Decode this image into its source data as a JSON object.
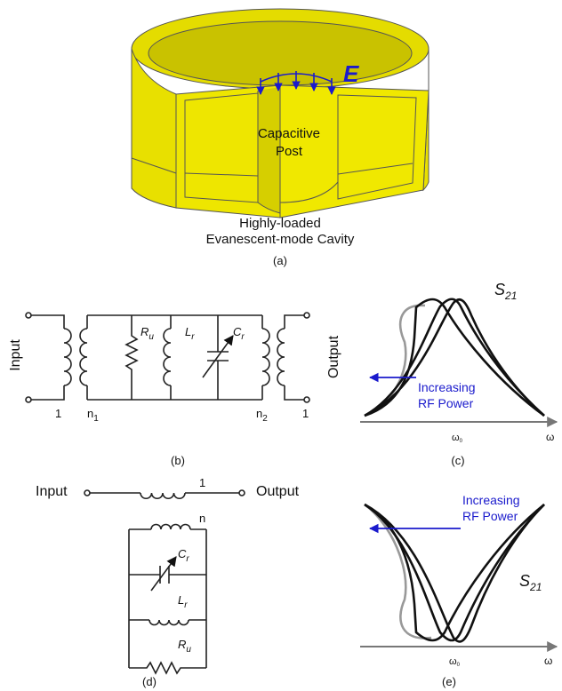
{
  "panel_a": {
    "field": "E",
    "post": [
      "Capacitive",
      "Post"
    ],
    "cavity": [
      "Highly-loaded",
      "Evanescent-mode Cavity"
    ],
    "caption": "(a)"
  },
  "panel_b": {
    "input": "Input",
    "output": "Output",
    "r": {
      "symbol": "R",
      "sub": "u"
    },
    "l": {
      "symbol": "L",
      "sub": "r"
    },
    "c": {
      "symbol": "C",
      "sub": "r"
    },
    "ratio_in": "1",
    "n1": {
      "symbol": "n",
      "sub": "1"
    },
    "n2": {
      "symbol": "n",
      "sub": "2"
    },
    "ratio_out": "1",
    "caption": "(b)"
  },
  "panel_c": {
    "label": {
      "symbol": "S",
      "sub": "21"
    },
    "note": [
      "Increasing",
      "RF Power"
    ],
    "omega0": {
      "symbol": "ω",
      "sub": "0"
    },
    "omega": "ω",
    "caption": "(c)"
  },
  "panel_d": {
    "input": "Input",
    "output": "Output",
    "ratio": "1",
    "n": "n",
    "c": {
      "symbol": "C",
      "sub": "r"
    },
    "l": {
      "symbol": "L",
      "sub": "r"
    },
    "r": {
      "symbol": "R",
      "sub": "u"
    },
    "caption": "(d)"
  },
  "panel_e": {
    "label": {
      "symbol": "S",
      "sub": "21"
    },
    "note": [
      "Increasing",
      "RF Power"
    ],
    "omega0": {
      "symbol": "ω",
      "sub": "0"
    },
    "omega": "ω",
    "caption": "(e)"
  }
}
